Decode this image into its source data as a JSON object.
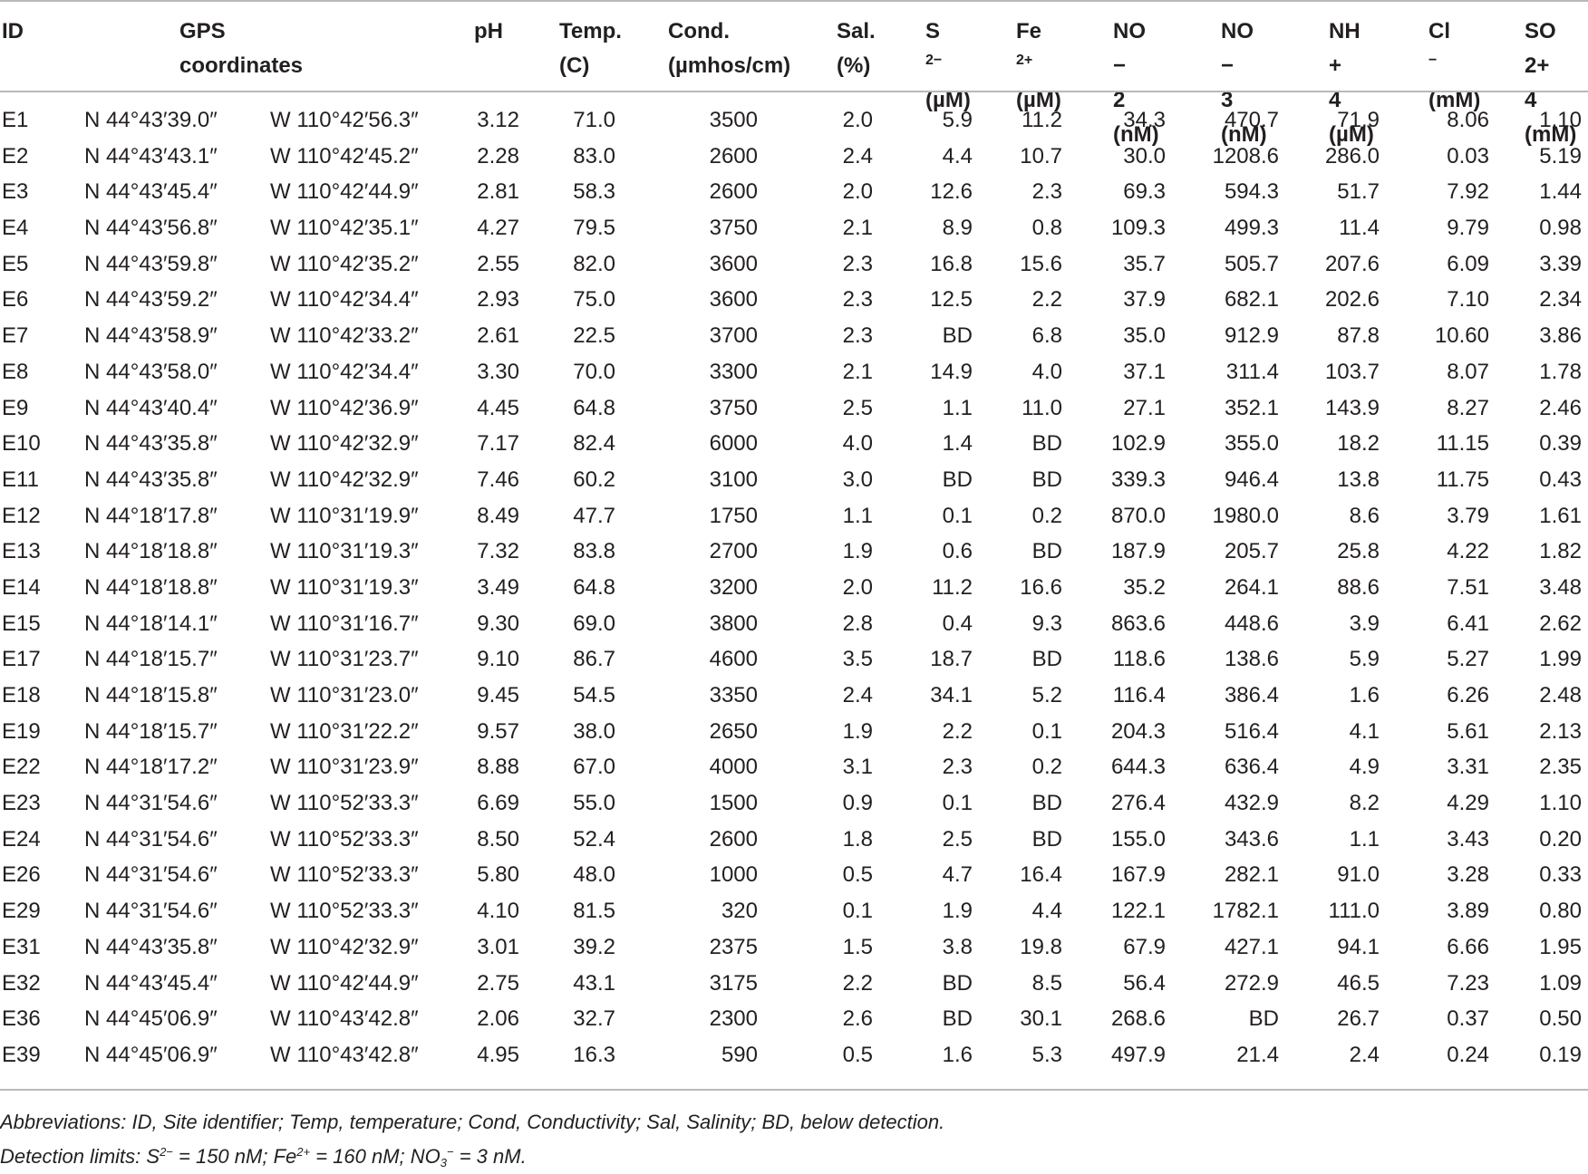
{
  "headers": {
    "id": "ID",
    "gps_1": "GPS",
    "gps_2": "coordinates",
    "ph": "pH",
    "temp_1": "Temp.",
    "temp_2": "(C)",
    "cond_1": "Cond.",
    "cond_2": "(µmhos/cm)",
    "sal_1": "Sal.",
    "sal_2": "(%)",
    "s2_base": "S",
    "s2_sup": "2−",
    "s2_unit": "(µM)",
    "fe_base": "Fe",
    "fe_sup": "2+",
    "fe_unit": "(µM)",
    "no2_base": "NO",
    "no2_sub": "2",
    "no2_sup": "−",
    "no2_unit": "(nM)",
    "no3_base": "NO",
    "no3_sub": "3",
    "no3_sup": "−",
    "no3_unit": "(nM)",
    "nh4_base": "NH",
    "nh4_sub": "4",
    "nh4_sup": "+",
    "nh4_unit": "(µM)",
    "cl_base": "Cl",
    "cl_sup": "−",
    "cl_unit": "(mM)",
    "so4_base": "SO",
    "so4_sub": "4",
    "so4_sup": "2+",
    "so4_unit": "(mM)"
  },
  "rows": [
    [
      "E1",
      "N 44°43′39.0″",
      "W 110°42′56.3″",
      "3.12",
      "71.0",
      "3500",
      "2.0",
      "5.9",
      "11.2",
      "34.3",
      "470.7",
      "71.9",
      "8.06",
      "1.10"
    ],
    [
      "E2",
      "N 44°43′43.1″",
      "W 110°42′45.2″",
      "2.28",
      "83.0",
      "2600",
      "2.4",
      "4.4",
      "10.7",
      "30.0",
      "1208.6",
      "286.0",
      "0.03",
      "5.19"
    ],
    [
      "E3",
      "N 44°43′45.4″",
      "W 110°42′44.9″",
      "2.81",
      "58.3",
      "2600",
      "2.0",
      "12.6",
      "2.3",
      "69.3",
      "594.3",
      "51.7",
      "7.92",
      "1.44"
    ],
    [
      "E4",
      "N 44°43′56.8″",
      "W 110°42′35.1″",
      "4.27",
      "79.5",
      "3750",
      "2.1",
      "8.9",
      "0.8",
      "109.3",
      "499.3",
      "11.4",
      "9.79",
      "0.98"
    ],
    [
      "E5",
      "N 44°43′59.8″",
      "W 110°42′35.2″",
      "2.55",
      "82.0",
      "3600",
      "2.3",
      "16.8",
      "15.6",
      "35.7",
      "505.7",
      "207.6",
      "6.09",
      "3.39"
    ],
    [
      "E6",
      "N 44°43′59.2″",
      "W 110°42′34.4″",
      "2.93",
      "75.0",
      "3600",
      "2.3",
      "12.5",
      "2.2",
      "37.9",
      "682.1",
      "202.6",
      "7.10",
      "2.34"
    ],
    [
      "E7",
      "N 44°43′58.9″",
      "W 110°42′33.2″",
      "2.61",
      "22.5",
      "3700",
      "2.3",
      "BD",
      "6.8",
      "35.0",
      "912.9",
      "87.8",
      "10.60",
      "3.86"
    ],
    [
      "E8",
      "N 44°43′58.0″",
      "W 110°42′34.4″",
      "3.30",
      "70.0",
      "3300",
      "2.1",
      "14.9",
      "4.0",
      "37.1",
      "311.4",
      "103.7",
      "8.07",
      "1.78"
    ],
    [
      "E9",
      "N 44°43′40.4″",
      "W 110°42′36.9″",
      "4.45",
      "64.8",
      "3750",
      "2.5",
      "1.1",
      "11.0",
      "27.1",
      "352.1",
      "143.9",
      "8.27",
      "2.46"
    ],
    [
      "E10",
      "N 44°43′35.8″",
      "W 110°42′32.9″",
      "7.17",
      "82.4",
      "6000",
      "4.0",
      "1.4",
      "BD",
      "102.9",
      "355.0",
      "18.2",
      "11.15",
      "0.39"
    ],
    [
      "E11",
      "N 44°43′35.8″",
      "W 110°42′32.9″",
      "7.46",
      "60.2",
      "3100",
      "3.0",
      "BD",
      "BD",
      "339.3",
      "946.4",
      "13.8",
      "11.75",
      "0.43"
    ],
    [
      "E12",
      "N 44°18′17.8″",
      "W 110°31′19.9″",
      "8.49",
      "47.7",
      "1750",
      "1.1",
      "0.1",
      "0.2",
      "870.0",
      "1980.0",
      "8.6",
      "3.79",
      "1.61"
    ],
    [
      "E13",
      "N 44°18′18.8″",
      "W 110°31′19.3″",
      "7.32",
      "83.8",
      "2700",
      "1.9",
      "0.6",
      "BD",
      "187.9",
      "205.7",
      "25.8",
      "4.22",
      "1.82"
    ],
    [
      "E14",
      "N 44°18′18.8″",
      "W 110°31′19.3″",
      "3.49",
      "64.8",
      "3200",
      "2.0",
      "11.2",
      "16.6",
      "35.2",
      "264.1",
      "88.6",
      "7.51",
      "3.48"
    ],
    [
      "E15",
      "N 44°18′14.1″",
      "W 110°31′16.7″",
      "9.30",
      "69.0",
      "3800",
      "2.8",
      "0.4",
      "9.3",
      "863.6",
      "448.6",
      "3.9",
      "6.41",
      "2.62"
    ],
    [
      "E17",
      "N 44°18′15.7″",
      "W 110°31′23.7″",
      "9.10",
      "86.7",
      "4600",
      "3.5",
      "18.7",
      "BD",
      "118.6",
      "138.6",
      "5.9",
      "5.27",
      "1.99"
    ],
    [
      "E18",
      "N 44°18′15.8″",
      "W 110°31′23.0″",
      "9.45",
      "54.5",
      "3350",
      "2.4",
      "34.1",
      "5.2",
      "116.4",
      "386.4",
      "1.6",
      "6.26",
      "2.48"
    ],
    [
      "E19",
      "N 44°18′15.7″",
      "W 110°31′22.2″",
      "9.57",
      "38.0",
      "2650",
      "1.9",
      "2.2",
      "0.1",
      "204.3",
      "516.4",
      "4.1",
      "5.61",
      "2.13"
    ],
    [
      "E22",
      "N 44°18′17.2″",
      "W 110°31′23.9″",
      "8.88",
      "67.0",
      "4000",
      "3.1",
      "2.3",
      "0.2",
      "644.3",
      "636.4",
      "4.9",
      "3.31",
      "2.35"
    ],
    [
      "E23",
      "N 44°31′54.6″",
      "W 110°52′33.3″",
      "6.69",
      "55.0",
      "1500",
      "0.9",
      "0.1",
      "BD",
      "276.4",
      "432.9",
      "8.2",
      "4.29",
      "1.10"
    ],
    [
      "E24",
      "N 44°31′54.6″",
      "W 110°52′33.3″",
      "8.50",
      "52.4",
      "2600",
      "1.8",
      "2.5",
      "BD",
      "155.0",
      "343.6",
      "1.1",
      "3.43",
      "0.20"
    ],
    [
      "E26",
      "N 44°31′54.6″",
      "W 110°52′33.3″",
      "5.80",
      "48.0",
      "1000",
      "0.5",
      "4.7",
      "16.4",
      "167.9",
      "282.1",
      "91.0",
      "3.28",
      "0.33"
    ],
    [
      "E29",
      "N 44°31′54.6″",
      "W 110°52′33.3″",
      "4.10",
      "81.5",
      "320",
      "0.1",
      "1.9",
      "4.4",
      "122.1",
      "1782.1",
      "111.0",
      "3.89",
      "0.80"
    ],
    [
      "E31",
      "N 44°43′35.8″",
      "W 110°42′32.9″",
      "3.01",
      "39.2",
      "2375",
      "1.5",
      "3.8",
      "19.8",
      "67.9",
      "427.1",
      "94.1",
      "6.66",
      "1.95"
    ],
    [
      "E32",
      "N 44°43′45.4″",
      "W 110°42′44.9″",
      "2.75",
      "43.1",
      "3175",
      "2.2",
      "BD",
      "8.5",
      "56.4",
      "272.9",
      "46.5",
      "7.23",
      "1.09"
    ],
    [
      "E36",
      "N 44°45′06.9″",
      "W 110°43′42.8″",
      "2.06",
      "32.7",
      "2300",
      "2.6",
      "BD",
      "30.1",
      "268.6",
      "BD",
      "26.7",
      "0.37",
      "0.50"
    ],
    [
      "E39",
      "N 44°45′06.9″",
      "W 110°43′42.8″",
      "4.95",
      "16.3",
      "590",
      "0.5",
      "1.6",
      "5.3",
      "497.9",
      "21.4",
      "2.4",
      "0.24",
      "0.19"
    ]
  ],
  "notes": {
    "abbrev": "Abbreviations: ID, Site identifier; Temp, temperature; Cond, Conductivity; Sal, Salinity; BD, below detection.",
    "detect_prefix": "Detection limits: S",
    "detect_s_sup": "2−",
    "detect_s_val": " = 150 nM; Fe",
    "detect_fe_sup": "2+",
    "detect_fe_val": " = 160 nM; NO",
    "detect_no3_sub": "3",
    "detect_no3_sup": "−",
    "detect_no3_val": " = 3 nM."
  }
}
